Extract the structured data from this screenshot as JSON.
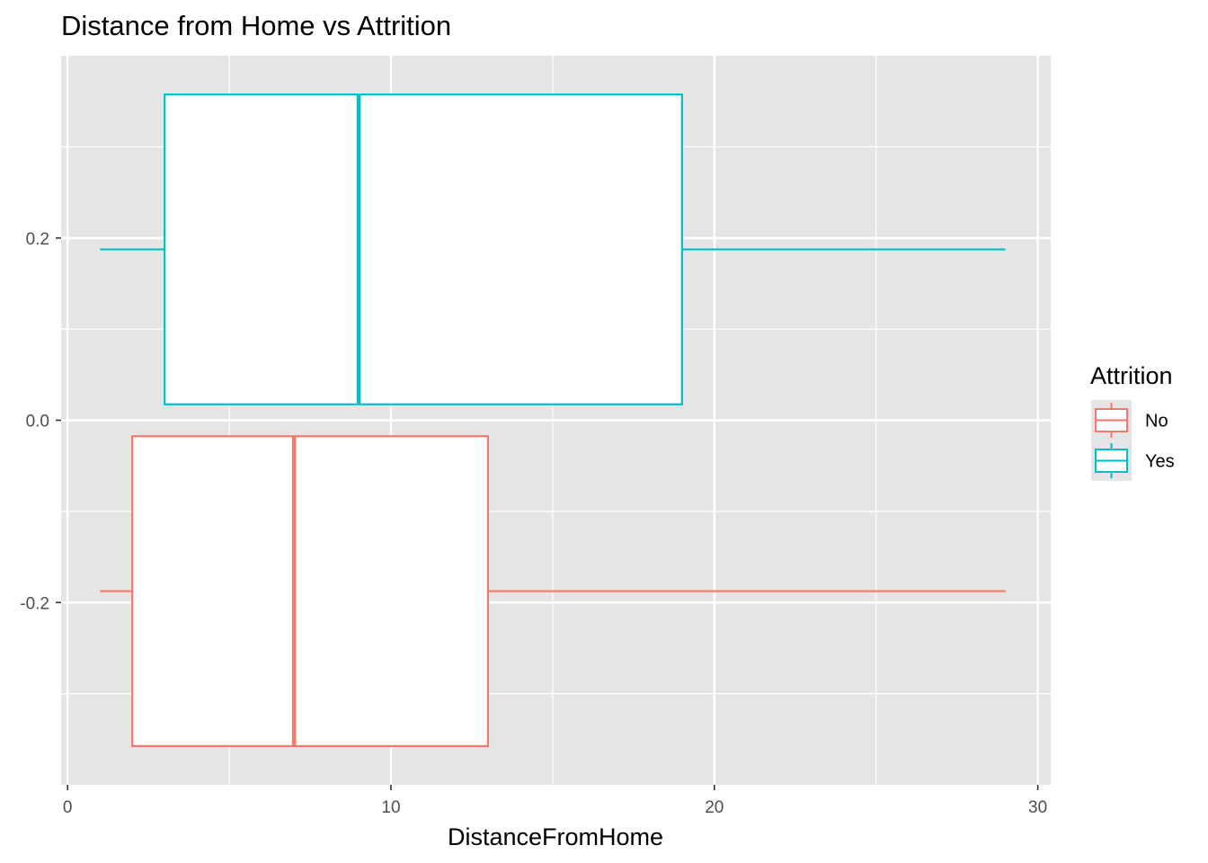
{
  "chart_data": {
    "type": "boxplot",
    "orientation": "horizontal",
    "title": "Distance from Home vs Attrition",
    "xlabel": "DistanceFromHome",
    "ylabel": "",
    "xlim": [
      -0.2,
      30.4
    ],
    "ylim": [
      -0.4,
      0.4
    ],
    "x_ticks": [
      0,
      10,
      20,
      30
    ],
    "x_tick_labels": [
      "0",
      "10",
      "20",
      "30"
    ],
    "y_ticks": [
      -0.2,
      0.0,
      0.2
    ],
    "y_tick_labels": [
      "-0.2",
      "0.0",
      "0.2"
    ],
    "grid": true,
    "background": "#e5e5e5",
    "legend": {
      "title": "Attrition",
      "position": "right",
      "entries": [
        {
          "label": "No",
          "color": "#f8766d"
        },
        {
          "label": "Yes",
          "color": "#00bfc4"
        }
      ]
    },
    "series": [
      {
        "name": "No",
        "color": "#f8766d",
        "min": 1,
        "q1": 2,
        "median": 7,
        "q3": 13,
        "max": 29,
        "y_center": -0.1875,
        "y_low": -0.3575,
        "y_high": -0.0175
      },
      {
        "name": "Yes",
        "color": "#00bfc4",
        "min": 1,
        "q1": 3,
        "median": 9,
        "q3": 19,
        "max": 29,
        "y_center": 0.1875,
        "y_low": 0.0175,
        "y_high": 0.3575
      }
    ]
  }
}
